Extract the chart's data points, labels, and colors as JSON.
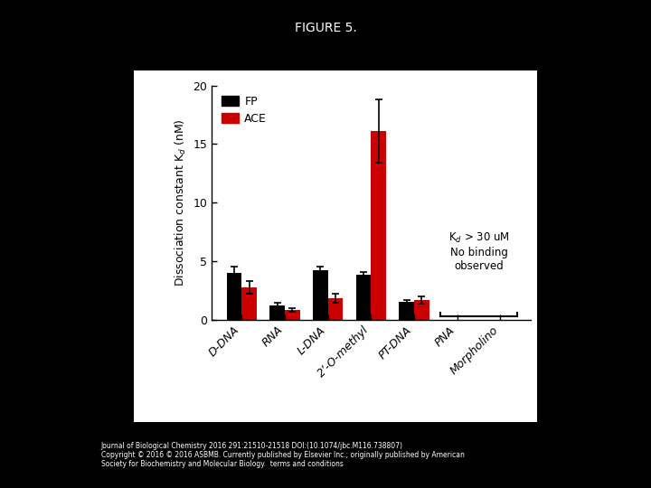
{
  "title": "FIGURE 5.",
  "categories": [
    "D-DNA",
    "RNA",
    "L-DNA",
    "2’-O-methyl",
    "PT-DNA",
    "PNA",
    "Morpholino"
  ],
  "fp_values": [
    4.0,
    1.25,
    4.2,
    3.8,
    1.5,
    0,
    0
  ],
  "ace_values": [
    2.75,
    0.85,
    1.85,
    16.1,
    1.65,
    0,
    0
  ],
  "fp_errors": [
    0.5,
    0.2,
    0.35,
    0.3,
    0.2,
    0,
    0
  ],
  "ace_errors": [
    0.55,
    0.15,
    0.4,
    2.7,
    0.3,
    0,
    0
  ],
  "fp_color": "#000000",
  "ace_color": "#cc0000",
  "ylabel": "Dissociation constant K$_d$ (nM)",
  "ylim": [
    0,
    20
  ],
  "yticks": [
    0,
    5,
    10,
    15,
    20
  ],
  "bg_color": "#000000",
  "plot_bg": "#ffffff",
  "annotation_text": "K$_d$ > 30 uM\nNo binding\nobserved",
  "bar_width": 0.35,
  "footer_line1": "Journal of Biological Chemistry 2016 291:21510-21518 DOI:(10.1074/jbc.M116.738807)",
  "footer_line2": "Copyright © 2016 © 2016 ASBMB. Currently published by Elsevier Inc.; originally published by American",
  "footer_line3": "Society for Biochemistry and Molecular Biology.  terms and conditions"
}
